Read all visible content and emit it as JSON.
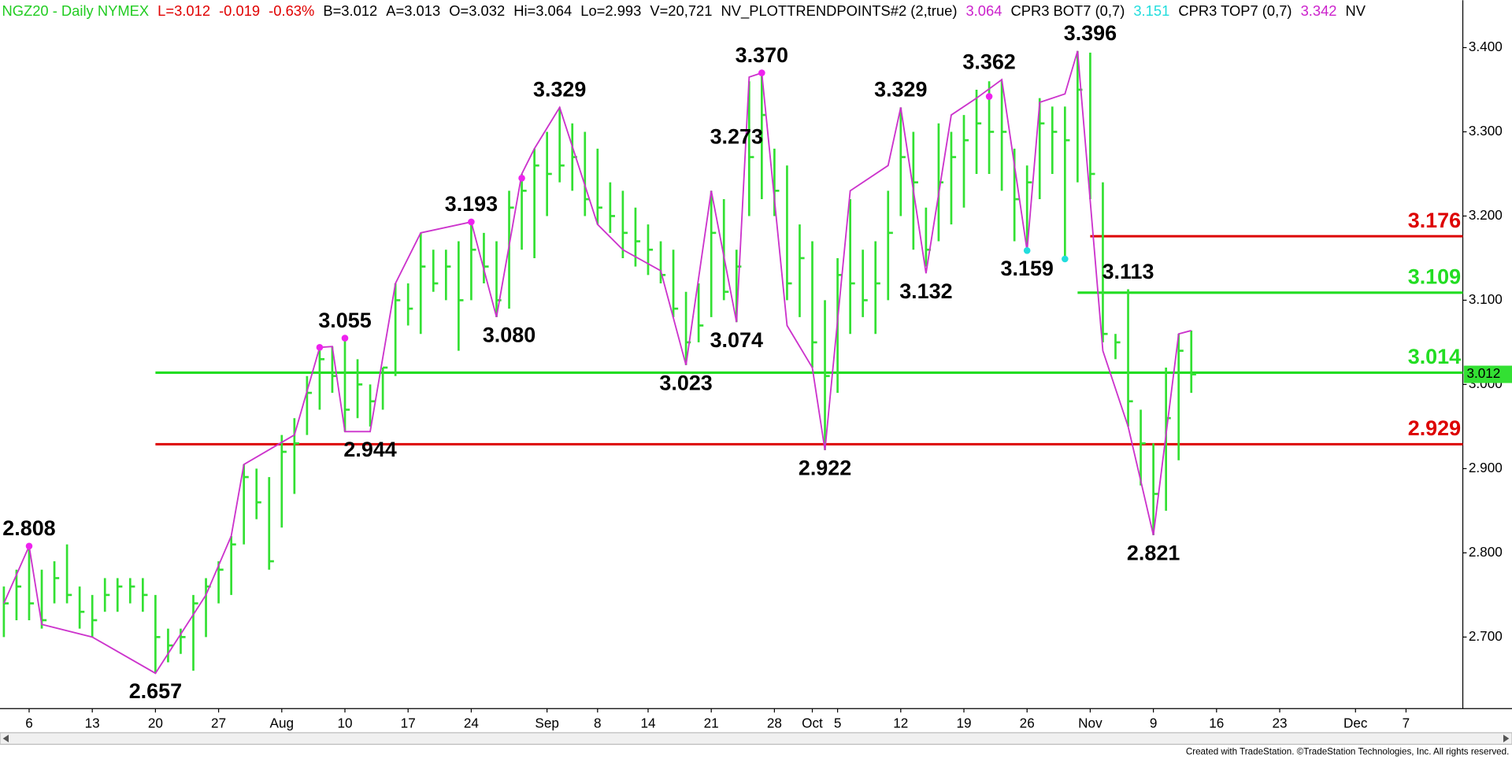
{
  "chart_data": {
    "type": "ohlc",
    "header": [
      {
        "text": "NGZ20 - Daily  NYMEX",
        "color": "#22cc22"
      },
      {
        "text": "L=3.012",
        "color": "#e00000"
      },
      {
        "text": "-0.019",
        "color": "#e00000"
      },
      {
        "text": "-0.63%",
        "color": "#e00000"
      },
      {
        "text": "B=3.012",
        "color": "#000000"
      },
      {
        "text": "A=3.013",
        "color": "#000000"
      },
      {
        "text": "O=3.032",
        "color": "#000000"
      },
      {
        "text": "Hi=3.064",
        "color": "#000000"
      },
      {
        "text": "Lo=2.993",
        "color": "#000000"
      },
      {
        "text": "V=20,721",
        "color": "#000000"
      },
      {
        "text": "NV_PLOTTRENDPOINTS#2 (2,true)",
        "color": "#000000"
      },
      {
        "text": "3.064",
        "color": "#cc22cc"
      },
      {
        "text": "CPR3 BOT7 (0,7)",
        "color": "#000000"
      },
      {
        "text": "3.151",
        "color": "#22dddd"
      },
      {
        "text": "CPR3 TOP7 (0,7)",
        "color": "#000000"
      },
      {
        "text": "3.342",
        "color": "#cc22cc"
      },
      {
        "text": "NV",
        "color": "#000000"
      }
    ],
    "footer": "Created with TradeStation. ©TradeStation Technologies, Inc. All rights reserved.",
    "color": "#33e033",
    "high": [
      2.76,
      2.78,
      2.808,
      2.78,
      2.79,
      2.81,
      2.76,
      2.75,
      2.77,
      2.77,
      2.77,
      2.77,
      2.75,
      2.71,
      2.71,
      2.75,
      2.77,
      2.79,
      2.82,
      2.905,
      2.9,
      2.89,
      2.94,
      2.96,
      3.01,
      3.044,
      3.045,
      3.055,
      3.03,
      3.0,
      3.02,
      3.12,
      3.12,
      3.18,
      3.16,
      3.16,
      3.17,
      3.193,
      3.18,
      3.17,
      3.23,
      3.25,
      3.28,
      3.3,
      3.329,
      3.31,
      3.3,
      3.28,
      3.24,
      3.23,
      3.21,
      3.19,
      3.17,
      3.16,
      3.11,
      3.12,
      3.23,
      3.22,
      3.16,
      3.36,
      3.37,
      3.28,
      3.26,
      3.19,
      3.17,
      3.1,
      3.15,
      3.22,
      3.16,
      3.17,
      3.23,
      3.329,
      3.3,
      3.21,
      3.31,
      3.3,
      3.32,
      3.35,
      3.36,
      3.36,
      3.28,
      3.26,
      3.34,
      3.33,
      3.33,
      3.396,
      3.394,
      3.24,
      3.06,
      3.113,
      2.97,
      2.93,
      3.02,
      3.06,
      3.064
    ],
    "low": [
      2.7,
      2.72,
      2.72,
      2.71,
      2.74,
      2.74,
      2.71,
      2.7,
      2.73,
      2.73,
      2.74,
      2.73,
      2.657,
      2.67,
      2.68,
      2.66,
      2.7,
      2.74,
      2.75,
      2.81,
      2.84,
      2.78,
      2.83,
      2.87,
      2.94,
      2.97,
      2.99,
      2.944,
      2.96,
      2.95,
      2.97,
      3.01,
      3.07,
      3.06,
      3.11,
      3.1,
      3.04,
      3.1,
      3.12,
      3.08,
      3.09,
      3.16,
      3.15,
      3.2,
      3.24,
      3.23,
      3.2,
      3.19,
      3.18,
      3.15,
      3.14,
      3.13,
      3.12,
      3.08,
      3.023,
      3.05,
      3.08,
      3.1,
      3.074,
      3.2,
      3.22,
      3.2,
      3.1,
      3.08,
      3.02,
      2.922,
      2.99,
      3.06,
      3.08,
      3.06,
      3.1,
      3.2,
      3.16,
      3.14,
      3.17,
      3.19,
      3.21,
      3.25,
      3.25,
      3.23,
      3.17,
      3.159,
      3.22,
      3.25,
      3.15,
      3.24,
      3.22,
      3.05,
      3.03,
      2.95,
      2.88,
      2.821,
      2.85,
      2.91,
      2.99
    ],
    "close": [
      2.74,
      2.76,
      2.74,
      2.72,
      2.77,
      2.75,
      2.73,
      2.72,
      2.75,
      2.76,
      2.76,
      2.75,
      2.7,
      2.69,
      2.7,
      2.74,
      2.76,
      2.78,
      2.81,
      2.89,
      2.86,
      2.79,
      2.92,
      2.93,
      2.99,
      3.03,
      3.01,
      2.97,
      3.0,
      2.98,
      3.02,
      3.1,
      3.09,
      3.14,
      3.12,
      3.14,
      3.1,
      3.16,
      3.14,
      3.1,
      3.21,
      3.23,
      3.26,
      3.25,
      3.26,
      3.27,
      3.22,
      3.21,
      3.2,
      3.18,
      3.17,
      3.16,
      3.13,
      3.09,
      3.05,
      3.07,
      3.18,
      3.11,
      3.14,
      3.27,
      3.32,
      3.23,
      3.12,
      3.15,
      3.05,
      3.01,
      3.13,
      3.12,
      3.1,
      3.12,
      3.18,
      3.27,
      3.24,
      3.16,
      3.24,
      3.27,
      3.29,
      3.31,
      3.3,
      3.3,
      3.22,
      3.24,
      3.31,
      3.3,
      3.29,
      3.35,
      3.25,
      3.06,
      3.05,
      2.98,
      2.93,
      2.87,
      2.96,
      3.04,
      3.012
    ],
    "trend": {
      "color": "#cc33cc",
      "x": [
        0,
        2,
        3,
        7,
        12,
        16,
        18,
        19,
        23,
        25,
        26,
        27,
        29,
        31,
        33,
        37,
        39,
        41,
        42,
        44,
        47,
        49,
        52,
        54,
        56,
        58,
        59,
        60,
        62,
        64,
        65,
        67,
        70,
        71,
        73,
        75,
        77,
        79,
        81,
        82,
        84,
        85,
        87,
        89,
        91,
        93,
        94
      ],
      "values": [
        2.74,
        2.808,
        2.715,
        2.7,
        2.657,
        2.75,
        2.82,
        2.905,
        2.94,
        3.044,
        3.045,
        2.944,
        2.944,
        3.12,
        3.18,
        3.193,
        3.08,
        3.25,
        3.28,
        3.329,
        3.19,
        3.16,
        3.135,
        3.023,
        3.23,
        3.074,
        3.365,
        3.37,
        3.07,
        3.02,
        2.922,
        3.23,
        3.26,
        3.329,
        3.132,
        3.32,
        3.34,
        3.362,
        3.159,
        3.335,
        3.345,
        3.396,
        3.04,
        2.95,
        2.821,
        3.06,
        3.064
      ]
    },
    "dots": [
      {
        "x": 2,
        "value": 2.808,
        "color": "#ee22ee"
      },
      {
        "x": 25,
        "value": 3.044,
        "color": "#ee22ee"
      },
      {
        "x": 27,
        "value": 3.055,
        "color": "#ee22ee"
      },
      {
        "x": 37,
        "value": 3.193,
        "color": "#ee22ee"
      },
      {
        "x": 41,
        "value": 3.245,
        "color": "#ee22ee"
      },
      {
        "x": 60,
        "value": 3.37,
        "color": "#ee22ee"
      },
      {
        "x": 78,
        "value": 3.342,
        "color": "#ee22ee"
      },
      {
        "x": 81,
        "value": 3.159,
        "color": "#22dddd"
      },
      {
        "x": 84,
        "value": 3.149,
        "color": "#22dddd"
      }
    ],
    "peak_labels": [
      {
        "x": 2,
        "value": 2.808,
        "label": "2.808"
      },
      {
        "x": 27,
        "value": 3.055,
        "label": "3.055"
      },
      {
        "x": 37,
        "value": 3.193,
        "label": "3.193"
      },
      {
        "x": 44,
        "value": 3.329,
        "label": "3.329"
      },
      {
        "x": 58,
        "value": 3.273,
        "label": "3.273"
      },
      {
        "x": 60,
        "value": 3.37,
        "label": "3.370"
      },
      {
        "x": 71,
        "value": 3.329,
        "label": "3.329"
      },
      {
        "x": 78,
        "value": 3.362,
        "label": "3.362"
      },
      {
        "x": 86,
        "value": 3.396,
        "label": "3.396"
      },
      {
        "x": 89,
        "value": 3.113,
        "label": "3.113"
      }
    ],
    "trough_labels": [
      {
        "x": 12,
        "value": 2.657,
        "label": "2.657"
      },
      {
        "x": 29,
        "value": 2.944,
        "label": "2.944"
      },
      {
        "x": 40,
        "value": 3.08,
        "label": "3.080"
      },
      {
        "x": 54,
        "value": 3.023,
        "label": "3.023"
      },
      {
        "x": 58,
        "value": 3.074,
        "label": "3.074"
      },
      {
        "x": 65,
        "value": 2.922,
        "label": "2.922"
      },
      {
        "x": 73,
        "value": 3.132,
        "label": "3.132"
      },
      {
        "x": 81,
        "value": 3.159,
        "label": "3.159"
      },
      {
        "x": 91,
        "value": 2.821,
        "label": "2.821"
      }
    ],
    "levels": [
      {
        "value": 3.176,
        "color": "#dd0000",
        "start": 86
      },
      {
        "value": 3.109,
        "color": "#22dd22",
        "start": 85
      },
      {
        "value": 3.014,
        "color": "#22dd22",
        "start": 12
      },
      {
        "value": 2.929,
        "color": "#dd0000",
        "start": 12
      }
    ],
    "last_price": 3.012,
    "ylim": [
      2.615,
      3.454
    ],
    "yticks": [
      {
        "value": 2.7,
        "label": "2.700"
      },
      {
        "value": 2.8,
        "label": "2.800"
      },
      {
        "value": 2.9,
        "label": "2.900"
      },
      {
        "value": 3.0,
        "label": "3.000"
      },
      {
        "value": 3.1,
        "label": "3.100"
      },
      {
        "value": 3.2,
        "label": "3.200"
      },
      {
        "value": 3.3,
        "label": "3.300"
      },
      {
        "value": 3.4,
        "label": "3.400"
      }
    ],
    "xticks": [
      {
        "value": 2,
        "label": "6"
      },
      {
        "value": 7,
        "label": "13"
      },
      {
        "value": 12,
        "label": "20"
      },
      {
        "value": 17,
        "label": "27"
      },
      {
        "value": 22,
        "label": "Aug"
      },
      {
        "value": 27,
        "label": "10"
      },
      {
        "value": 32,
        "label": "17"
      },
      {
        "value": 37,
        "label": "24"
      },
      {
        "value": 43,
        "label": "Sep"
      },
      {
        "value": 47,
        "label": "8"
      },
      {
        "value": 51,
        "label": "14"
      },
      {
        "value": 56,
        "label": "21"
      },
      {
        "value": 61,
        "label": "28"
      },
      {
        "value": 64,
        "label": "Oct"
      },
      {
        "value": 66,
        "label": "5"
      },
      {
        "value": 71,
        "label": "12"
      },
      {
        "value": 76,
        "label": "19"
      },
      {
        "value": 81,
        "label": "26"
      },
      {
        "value": 86,
        "label": "Nov"
      },
      {
        "value": 91,
        "label": "9"
      },
      {
        "value": 96,
        "label": "16"
      },
      {
        "value": 101,
        "label": "23"
      },
      {
        "value": 107,
        "label": "Dec"
      },
      {
        "value": 111,
        "label": "7"
      }
    ]
  }
}
